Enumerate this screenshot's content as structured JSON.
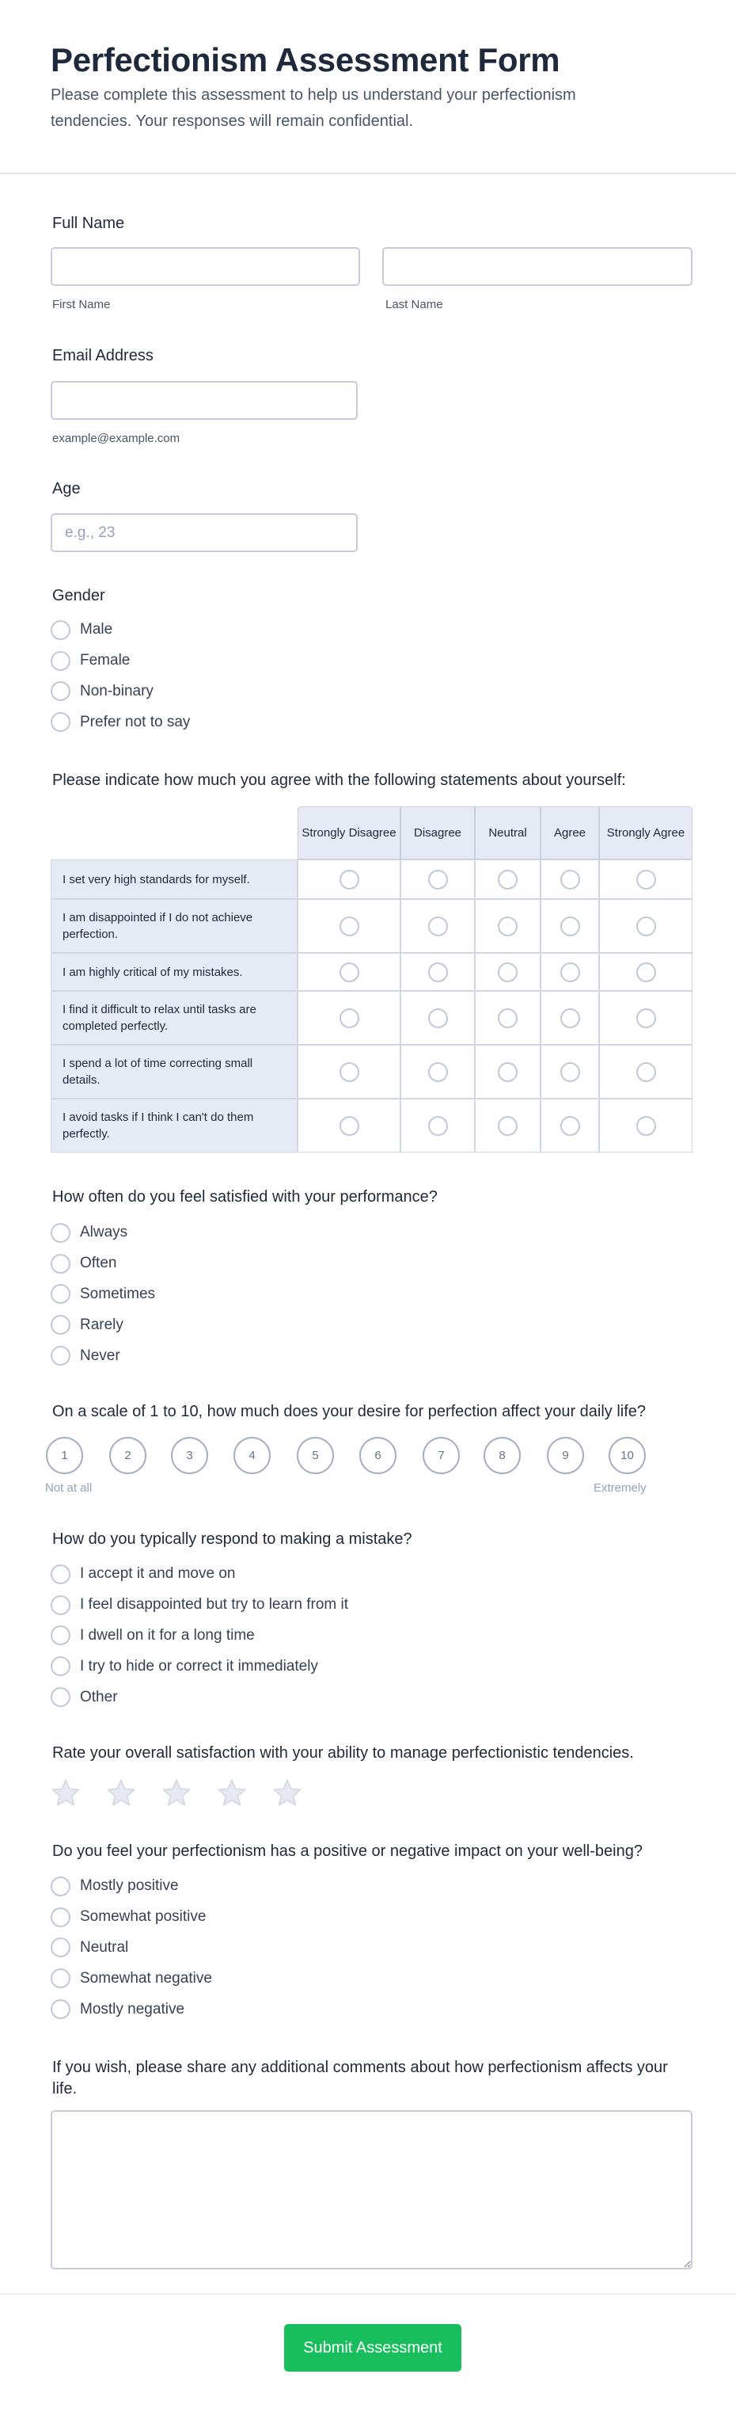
{
  "header": {
    "title": "Perfectionism Assessment Form",
    "description": "Please complete this assessment to help us understand your perfectionism tendencies. Your responses will remain confidential."
  },
  "full_name": {
    "label": "Full Name",
    "first": {
      "value": "",
      "sublabel": "First Name"
    },
    "last": {
      "value": "",
      "sublabel": "Last Name"
    }
  },
  "email": {
    "label": "Email Address",
    "value": "",
    "sublabel": "example@example.com"
  },
  "age": {
    "label": "Age",
    "value": "",
    "placeholder": "e.g., 23"
  },
  "gender": {
    "label": "Gender",
    "options": [
      "Male",
      "Female",
      "Non-binary",
      "Prefer not to say"
    ]
  },
  "matrix": {
    "label": "Please indicate how much you agree with the following statements about yourself:",
    "columns": [
      "Strongly Disagree",
      "Disagree",
      "Neutral",
      "Agree",
      "Strongly Agree"
    ],
    "rows": [
      "I set very high standards for myself.",
      "I am disappointed if I do not achieve perfection.",
      "I am highly critical of my mistakes.",
      "I find it difficult to relax until tasks are completed perfectly.",
      "I spend a lot of time correcting small details.",
      "I avoid tasks if I think I can't do them perfectly."
    ]
  },
  "satisfied": {
    "label": "How often do you feel satisfied with your performance?",
    "options": [
      "Always",
      "Often",
      "Sometimes",
      "Rarely",
      "Never"
    ]
  },
  "scale": {
    "label": "On a scale of 1 to 10, how much does your desire for perfection affect your daily life?",
    "values": [
      "1",
      "2",
      "3",
      "4",
      "5",
      "6",
      "7",
      "8",
      "9",
      "10"
    ],
    "min_label": "Not at all",
    "max_label": "Extremely"
  },
  "mistake": {
    "label": "How do you typically respond to making a mistake?",
    "options": [
      "I accept it and move on",
      "I feel disappointed but try to learn from it",
      "I dwell on it for a long time",
      "I try to hide or correct it immediately",
      "Other"
    ]
  },
  "rating": {
    "label": "Rate your overall satisfaction with your ability to manage perfectionistic tendencies.",
    "stars": 5,
    "value": 0,
    "star_color": "#e6e9f2"
  },
  "impact": {
    "label": "Do you feel your perfectionism has a positive or negative impact on your well-being?",
    "options": [
      "Mostly positive",
      "Somewhat positive",
      "Neutral",
      "Somewhat negative",
      "Mostly negative"
    ]
  },
  "comments": {
    "label": "If you wish, please share any additional comments about how perfectionism affects your life.",
    "value": ""
  },
  "submit": {
    "label": "Submit Assessment",
    "color": "#18be5c"
  }
}
